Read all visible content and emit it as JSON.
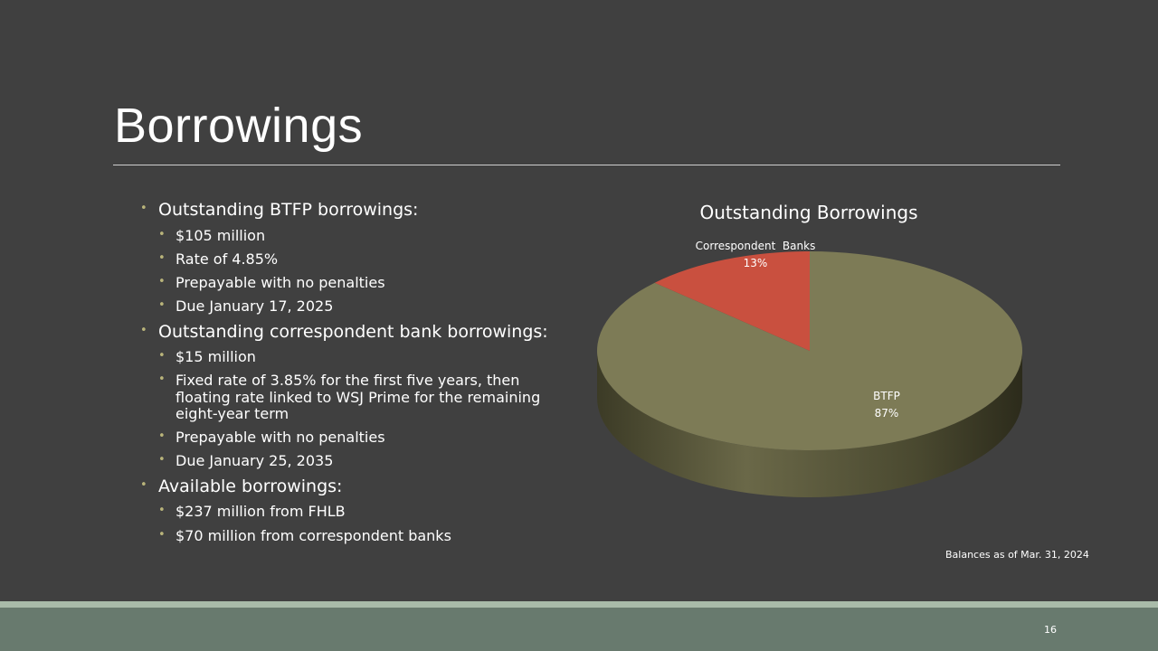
{
  "slide": {
    "title": "Borrowings",
    "page_number": "16",
    "note": "Balances as of Mar. 31, 2024"
  },
  "bullets": [
    {
      "level": 1,
      "text": "Outstanding BTFP borrowings:"
    },
    {
      "level": 2,
      "text": "$105 million"
    },
    {
      "level": 2,
      "text": "Rate of 4.85%"
    },
    {
      "level": 2,
      "text": "Prepayable with no penalties"
    },
    {
      "level": 2,
      "text": "Due January 17, 2025"
    },
    {
      "level": 1,
      "text": "Outstanding correspondent bank borrowings:"
    },
    {
      "level": 2,
      "text": "$15 million"
    },
    {
      "level": 2,
      "text": "Fixed rate of 3.85% for the first five years, then floating rate linked to WSJ Prime for the remaining eight-year term"
    },
    {
      "level": 2,
      "text": "Prepayable with no penalties"
    },
    {
      "level": 2,
      "text": "Due January 25, 2035"
    },
    {
      "level": 1,
      "text": "Available borrowings:"
    },
    {
      "level": 2,
      "text": "$237 million from FHLB"
    },
    {
      "level": 2,
      "text": "$70 million from correspondent banks"
    }
  ],
  "colors": {
    "background": "#404040",
    "bullet": "#b9b47a",
    "btfp_slice": "#7d7b56",
    "correspondent_slice": "#c9503f",
    "footer": "#687a6e",
    "footer_band": "#a9bba9"
  },
  "chart_data": {
    "type": "pie",
    "style": "3d",
    "title": "Outstanding Borrowings",
    "slices": [
      {
        "label": "BTFP",
        "value": 87,
        "value_label": "87%",
        "color": "#7d7b56"
      },
      {
        "label": "Correspondent  Banks",
        "value": 13,
        "value_label": "13%",
        "color": "#c9503f"
      }
    ]
  }
}
